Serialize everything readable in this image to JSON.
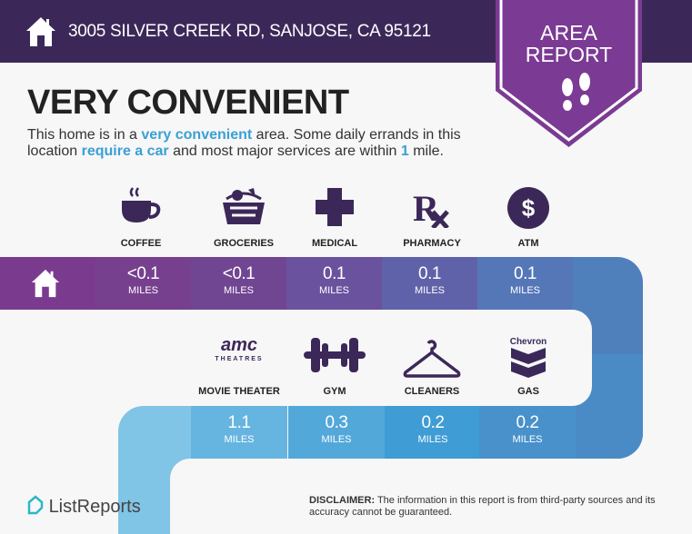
{
  "header": {
    "address": "3005 SILVER CREEK RD, SANJOSE, CA 95121",
    "home_icon": "house-icon"
  },
  "badge": {
    "line1": "AREA",
    "line2": "REPORT",
    "icon": "footprints-icon",
    "color": "#7b3a93"
  },
  "title": "VERY CONVENIENT",
  "description": {
    "p1": "This home is in a ",
    "h1": "very convenient",
    "p2": " area. Some daily errands in this location ",
    "h2": "require a car",
    "p3": " and most major services are within ",
    "h3": "1",
    "p4": " mile."
  },
  "unit": "MILES",
  "top_row": [
    {
      "label": "COFFEE",
      "value": "<0.1",
      "icon": "coffee-cup-icon",
      "color": "#77408f"
    },
    {
      "label": "GROCERIES",
      "value": "<0.1",
      "icon": "grocery-basket-icon",
      "color": "#704592"
    },
    {
      "label": "MEDICAL",
      "value": "0.1",
      "icon": "medical-cross-icon",
      "color": "#6a529e"
    },
    {
      "label": "PHARMACY",
      "value": "0.1",
      "icon": "rx-icon",
      "color": "#6062a9"
    },
    {
      "label": "ATM",
      "value": "0.1",
      "icon": "dollar-icon",
      "color": "#5577b8"
    }
  ],
  "bottom_row": [
    {
      "label": "MOVIE THEATER",
      "value": "1.1",
      "icon": "amc-theatres-logo",
      "logo_text": "amc THEATRES",
      "color": "#66b5e0"
    },
    {
      "label": "GYM",
      "value": "0.3",
      "icon": "dumbbell-icon",
      "color": "#53a8da"
    },
    {
      "label": "CLEANERS",
      "value": "0.2",
      "icon": "hanger-icon",
      "color": "#3f9cd4"
    },
    {
      "label": "GAS",
      "value": "0.2",
      "icon": "chevron-logo",
      "logo_text": "Chevron",
      "color": "#4891ca"
    }
  ],
  "disclaimer": {
    "bold": "DISCLAIMER:",
    "text": " The information in this report is from third-party sources and its accuracy cannot be guaranteed."
  },
  "logo": "ListReports"
}
